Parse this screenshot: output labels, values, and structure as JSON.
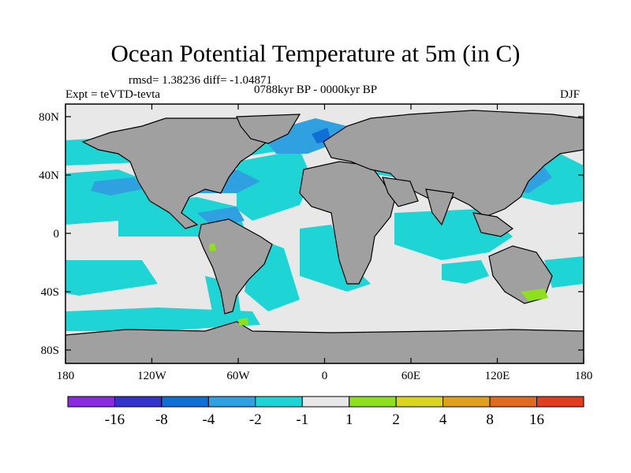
{
  "title": "Ocean Potential Temperature at 5m (in C)",
  "stats": "rmsd= 1.38236 diff= -1.04871",
  "experiment": "Expt = teVTD-tevta",
  "period": "0788kyr BP - 0000kyr BP",
  "season": "DJF",
  "lat_ticks": [
    "80N",
    "40N",
    "0",
    "40S",
    "80S"
  ],
  "lon_ticks": [
    "180",
    "120W",
    "60W",
    "0",
    "60E",
    "120E",
    "180"
  ],
  "colorbar": {
    "labels": [
      "-16",
      "-8",
      "-4",
      "-2",
      "-1",
      "1",
      "2",
      "4",
      "8",
      "16"
    ],
    "colors": [
      "#8a2be2",
      "#3333cc",
      "#0f6fd6",
      "#2fa0e0",
      "#1fd4d4",
      "#e8e8e8",
      "#8ee01f",
      "#d8d41f",
      "#e0a01f",
      "#e06a1f",
      "#e03c1f"
    ]
  },
  "colors": {
    "land": "#a0a0a0",
    "ocean_neutral": "#e8e8e8",
    "cool_light": "#1fd4d4",
    "cool_mid": "#2fa0e0",
    "cool_strong": "#0f6fd6"
  }
}
